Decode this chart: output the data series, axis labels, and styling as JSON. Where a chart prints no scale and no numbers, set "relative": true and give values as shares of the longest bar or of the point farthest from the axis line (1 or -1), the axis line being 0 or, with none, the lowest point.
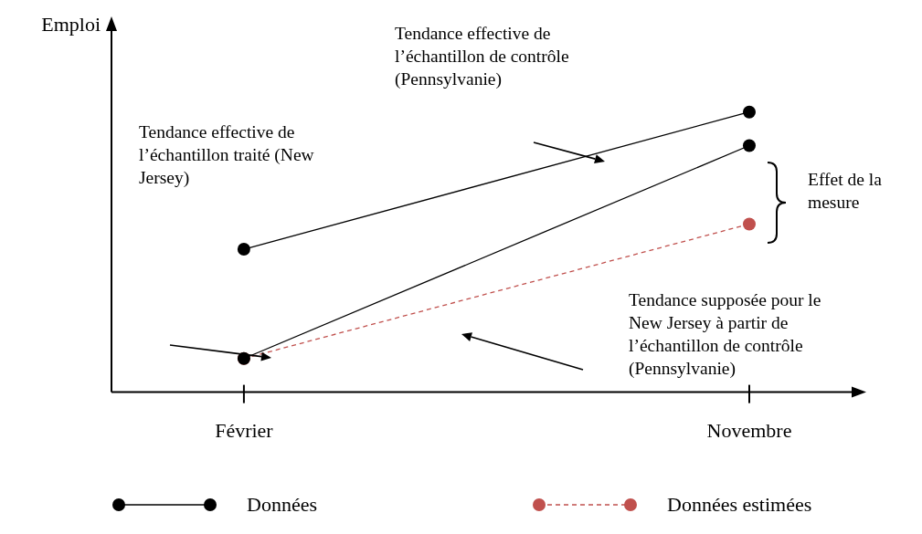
{
  "chart_data": {
    "type": "line",
    "relative": true,
    "ylabel": "Emploi",
    "categories": [
      "Février",
      "Novembre"
    ],
    "marker": "circle",
    "legend": "bottom",
    "grid": false,
    "series": [
      {
        "name": "Données",
        "color": "#000000",
        "values": [
          0.51,
          1
        ],
        "line_style": "solid"
      },
      {
        "color": "#000000",
        "values": [
          0.12,
          0.88
        ],
        "line_style": "solid"
      },
      {
        "name": "Données estimées",
        "color": "#c0504d",
        "values": [
          0.12,
          0.6
        ],
        "line_style": "dashed"
      }
    ],
    "annotations": [
      "Tendance effective de l’échantillon traité (New Jersey)",
      "Tendance effective de l’échantillon de contrôle (Pennsylvanie)",
      "Tendance supposée pour le New Jersey à partir de l’échantillon de contrôle (Pennsylvanie)",
      "Effet de la mesure"
    ]
  }
}
